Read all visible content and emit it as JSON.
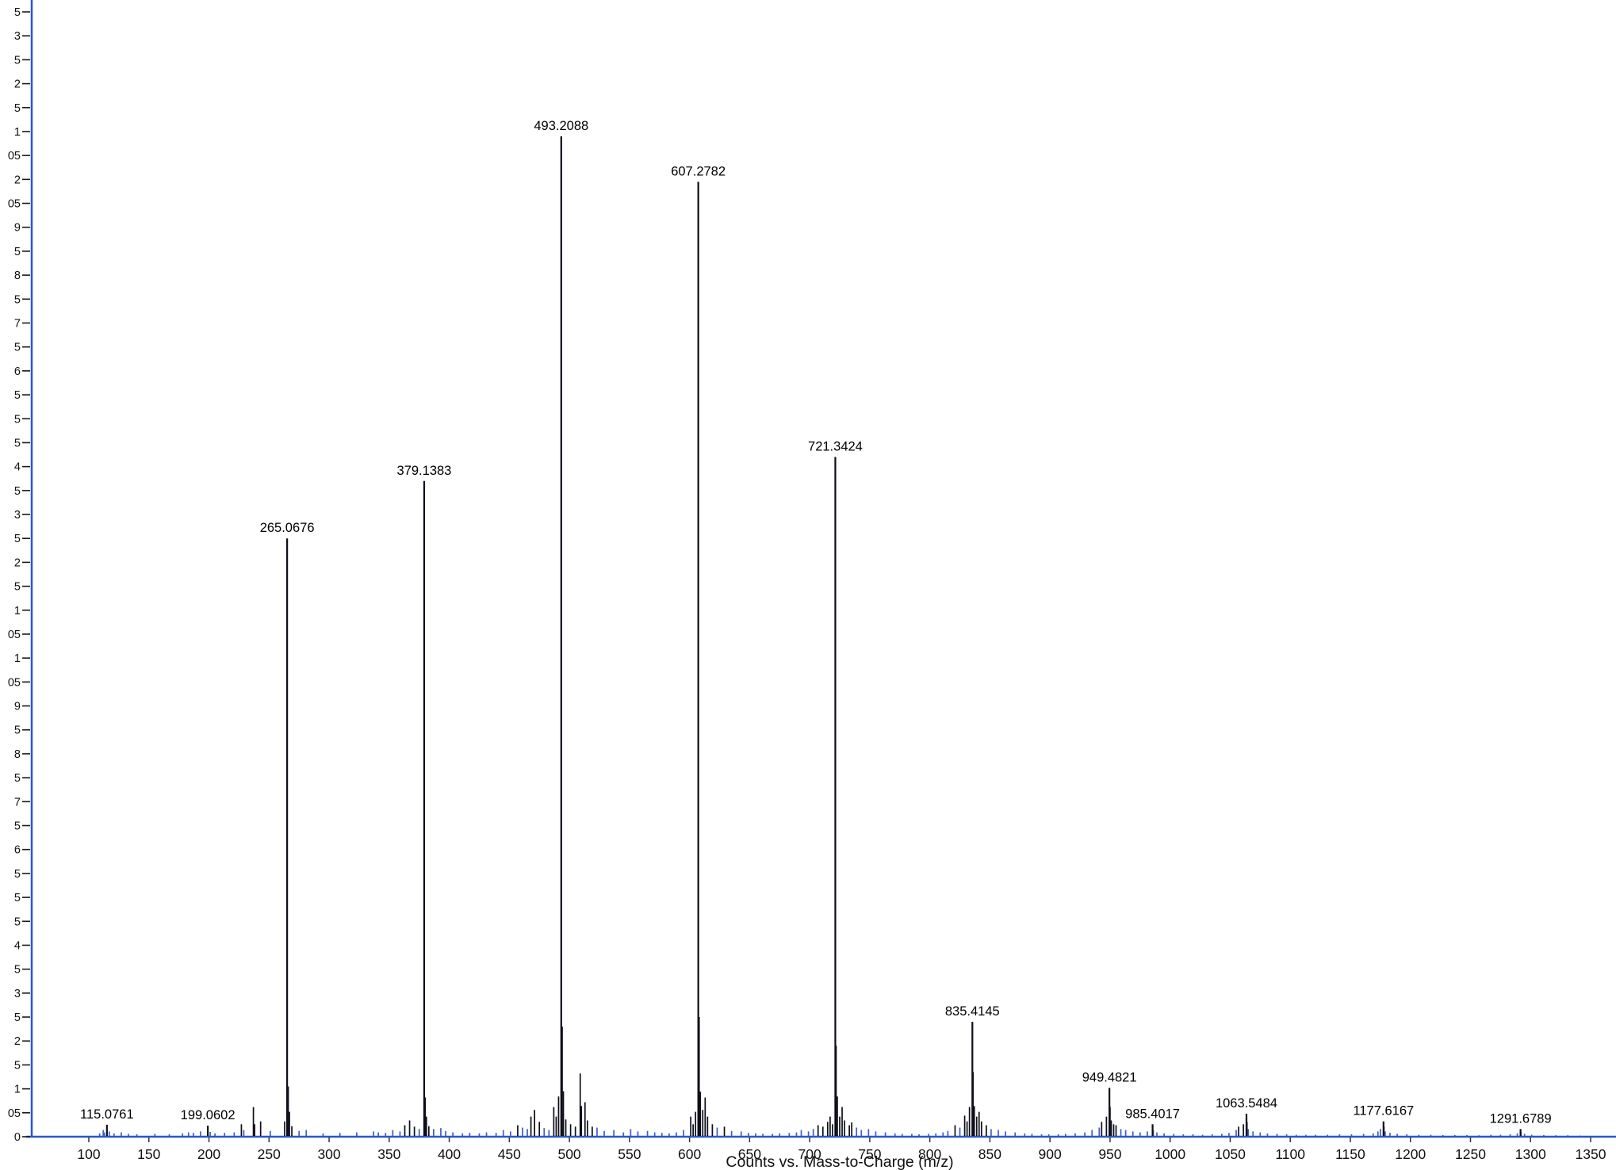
{
  "window": {
    "background": "#ffffff"
  },
  "chart_data": {
    "type": "bar",
    "subtype": "mass-spectrum-stick-plot",
    "title": "",
    "xlabel": "Counts vs. Mass-to-Charge (m/z)",
    "ylabel": "",
    "legend": "none",
    "grid": false,
    "x_axis": {
      "tick_labels": [
        "100",
        "150",
        "200",
        "250",
        "300",
        "350",
        "400",
        "450",
        "500",
        "550",
        "600",
        "650",
        "700",
        "750",
        "800",
        "850",
        "900",
        "950",
        "1000",
        "1050",
        "1100",
        "1150",
        "1200",
        "1250",
        "1300",
        "1350"
      ],
      "tick_start": 100,
      "tick_end": 1350,
      "tick_step": 50
    },
    "y_axis": {
      "min": 0,
      "max": 235000,
      "tick_step": 5000,
      "labels_clipped_at_left_edge": true,
      "visible_tick_fragments": [
        "5",
        "3",
        "5",
        "2",
        "5",
        "1",
        "05",
        "2",
        "05",
        "9",
        "5",
        "8",
        "5",
        "7",
        "5",
        "6",
        "5",
        "5",
        "5",
        "4",
        "5",
        "3",
        "5",
        "2",
        "5",
        "1",
        "05",
        "1",
        "05",
        "9",
        "5",
        "8",
        "5",
        "7",
        "5",
        "6",
        "5",
        "5",
        "5",
        "4",
        "5",
        "3",
        "5",
        "2",
        "5",
        "1",
        "05",
        "0"
      ]
    },
    "labeled_peaks": [
      {
        "mz": 115.0761,
        "intensity": 2500,
        "label": "115.0761"
      },
      {
        "mz": 199.0602,
        "intensity": 2300,
        "label": "199.0602"
      },
      {
        "mz": 265.0676,
        "intensity": 125000,
        "label": "265.0676"
      },
      {
        "mz": 379.1383,
        "intensity": 137000,
        "label": "379.1383"
      },
      {
        "mz": 493.2088,
        "intensity": 209000,
        "label": "493.2088"
      },
      {
        "mz": 607.2782,
        "intensity": 199500,
        "label": "607.2782"
      },
      {
        "mz": 721.3424,
        "intensity": 142000,
        "label": "721.3424"
      },
      {
        "mz": 835.4145,
        "intensity": 24000,
        "label": "835.4145"
      },
      {
        "mz": 949.4821,
        "intensity": 10200,
        "label": "949.4821"
      },
      {
        "mz": 985.4017,
        "intensity": 2600,
        "label": "985.4017"
      },
      {
        "mz": 1063.5484,
        "intensity": 4800,
        "label": "1063.5484"
      },
      {
        "mz": 1177.6167,
        "intensity": 3200,
        "label": "1177.6167"
      },
      {
        "mz": 1291.6789,
        "intensity": 1600,
        "label": "1291.6789"
      }
    ],
    "minor_peaks": [
      [
        109,
        700
      ],
      [
        112,
        1400
      ],
      [
        113,
        900
      ],
      [
        117,
        1100
      ],
      [
        121,
        700
      ],
      [
        127,
        900
      ],
      [
        133,
        600
      ],
      [
        140,
        500
      ],
      [
        155,
        600
      ],
      [
        167,
        500
      ],
      [
        178,
        700
      ],
      [
        183,
        900
      ],
      [
        187,
        800
      ],
      [
        193,
        1100
      ],
      [
        201,
        1000
      ],
      [
        205,
        700
      ],
      [
        213,
        800
      ],
      [
        221,
        900
      ],
      [
        227,
        2600
      ],
      [
        229,
        1400
      ],
      [
        237,
        6200
      ],
      [
        238,
        2600
      ],
      [
        243,
        3200
      ],
      [
        251,
        1200
      ],
      [
        263,
        3200
      ],
      [
        266,
        10500
      ],
      [
        267,
        5200
      ],
      [
        269,
        2200
      ],
      [
        275,
        1200
      ],
      [
        281,
        1400
      ],
      [
        295,
        700
      ],
      [
        309,
        800
      ],
      [
        323,
        900
      ],
      [
        337,
        1100
      ],
      [
        341,
        900
      ],
      [
        347,
        800
      ],
      [
        353,
        1400
      ],
      [
        359,
        1100
      ],
      [
        363,
        2400
      ],
      [
        367,
        3400
      ],
      [
        371,
        2100
      ],
      [
        375,
        1600
      ],
      [
        380,
        8200
      ],
      [
        381,
        4200
      ],
      [
        383,
        2200
      ],
      [
        387,
        1600
      ],
      [
        393,
        1800
      ],
      [
        397,
        1200
      ],
      [
        403,
        900
      ],
      [
        411,
        700
      ],
      [
        417,
        800
      ],
      [
        425,
        700
      ],
      [
        431,
        900
      ],
      [
        439,
        800
      ],
      [
        445,
        1400
      ],
      [
        451,
        1100
      ],
      [
        457,
        2400
      ],
      [
        461,
        1900
      ],
      [
        465,
        1600
      ],
      [
        468,
        4200
      ],
      [
        471,
        5600
      ],
      [
        475,
        3100
      ],
      [
        479,
        1800
      ],
      [
        483,
        1400
      ],
      [
        487,
        6200
      ],
      [
        489,
        4200
      ],
      [
        491,
        8400
      ],
      [
        494,
        23000
      ],
      [
        495,
        9500
      ],
      [
        497,
        3600
      ],
      [
        501,
        2600
      ],
      [
        505,
        2100
      ],
      [
        509,
        13200
      ],
      [
        510,
        6400
      ],
      [
        513,
        7200
      ],
      [
        515,
        3400
      ],
      [
        519,
        2100
      ],
      [
        523,
        1900
      ],
      [
        529,
        1200
      ],
      [
        537,
        1400
      ],
      [
        545,
        900
      ],
      [
        551,
        1600
      ],
      [
        557,
        1100
      ],
      [
        565,
        1200
      ],
      [
        571,
        900
      ],
      [
        577,
        800
      ],
      [
        583,
        700
      ],
      [
        589,
        900
      ],
      [
        595,
        1400
      ],
      [
        601,
        4200
      ],
      [
        603,
        2600
      ],
      [
        605,
        5200
      ],
      [
        608,
        25000
      ],
      [
        609,
        9400
      ],
      [
        611,
        5600
      ],
      [
        613,
        8200
      ],
      [
        615,
        4200
      ],
      [
        619,
        2600
      ],
      [
        623,
        1900
      ],
      [
        629,
        2100
      ],
      [
        635,
        1200
      ],
      [
        643,
        1100
      ],
      [
        649,
        800
      ],
      [
        655,
        700
      ],
      [
        661,
        600
      ],
      [
        669,
        600
      ],
      [
        675,
        700
      ],
      [
        683,
        800
      ],
      [
        689,
        900
      ],
      [
        693,
        1400
      ],
      [
        699,
        1100
      ],
      [
        703,
        1600
      ],
      [
        707,
        2400
      ],
      [
        711,
        2100
      ],
      [
        715,
        3100
      ],
      [
        717,
        4200
      ],
      [
        719,
        2600
      ],
      [
        722,
        19000
      ],
      [
        723,
        8400
      ],
      [
        725,
        4200
      ],
      [
        727,
        6200
      ],
      [
        729,
        3400
      ],
      [
        733,
        2400
      ],
      [
        735,
        3000
      ],
      [
        739,
        1900
      ],
      [
        743,
        1400
      ],
      [
        749,
        1600
      ],
      [
        755,
        1100
      ],
      [
        763,
        900
      ],
      [
        771,
        700
      ],
      [
        777,
        600
      ],
      [
        785,
        600
      ],
      [
        791,
        500
      ],
      [
        799,
        600
      ],
      [
        805,
        700
      ],
      [
        811,
        900
      ],
      [
        815,
        1200
      ],
      [
        821,
        2400
      ],
      [
        825,
        1900
      ],
      [
        829,
        4400
      ],
      [
        831,
        3200
      ],
      [
        833,
        6200
      ],
      [
        836,
        13500
      ],
      [
        837,
        6400
      ],
      [
        839,
        4200
      ],
      [
        841,
        5200
      ],
      [
        843,
        3200
      ],
      [
        847,
        2400
      ],
      [
        851,
        1600
      ],
      [
        857,
        1400
      ],
      [
        863,
        1100
      ],
      [
        871,
        900
      ],
      [
        879,
        700
      ],
      [
        885,
        600
      ],
      [
        893,
        500
      ],
      [
        899,
        500
      ],
      [
        907,
        500
      ],
      [
        913,
        600
      ],
      [
        921,
        700
      ],
      [
        929,
        900
      ],
      [
        935,
        1400
      ],
      [
        941,
        1900
      ],
      [
        943,
        3100
      ],
      [
        947,
        4200
      ],
      [
        950,
        6200
      ],
      [
        951,
        3400
      ],
      [
        953,
        2600
      ],
      [
        955,
        2400
      ],
      [
        959,
        1600
      ],
      [
        963,
        1400
      ],
      [
        969,
        1100
      ],
      [
        975,
        900
      ],
      [
        981,
        1100
      ],
      [
        986,
        1400
      ],
      [
        989,
        900
      ],
      [
        995,
        700
      ],
      [
        1003,
        600
      ],
      [
        1011,
        500
      ],
      [
        1019,
        500
      ],
      [
        1027,
        400
      ],
      [
        1035,
        500
      ],
      [
        1043,
        600
      ],
      [
        1049,
        800
      ],
      [
        1055,
        1400
      ],
      [
        1057,
        2100
      ],
      [
        1061,
        2600
      ],
      [
        1064,
        3100
      ],
      [
        1065,
        1600
      ],
      [
        1069,
        1100
      ],
      [
        1075,
        900
      ],
      [
        1081,
        700
      ],
      [
        1089,
        600
      ],
      [
        1097,
        500
      ],
      [
        1105,
        400
      ],
      [
        1113,
        400
      ],
      [
        1121,
        400
      ],
      [
        1131,
        400
      ],
      [
        1141,
        500
      ],
      [
        1151,
        500
      ],
      [
        1161,
        600
      ],
      [
        1169,
        700
      ],
      [
        1173,
        1100
      ],
      [
        1175,
        1600
      ],
      [
        1178,
        2100
      ],
      [
        1179,
        1100
      ],
      [
        1183,
        800
      ],
      [
        1189,
        600
      ],
      [
        1197,
        500
      ],
      [
        1207,
        400
      ],
      [
        1217,
        400
      ],
      [
        1227,
        350
      ],
      [
        1237,
        350
      ],
      [
        1247,
        350
      ],
      [
        1257,
        300
      ],
      [
        1267,
        400
      ],
      [
        1275,
        400
      ],
      [
        1283,
        500
      ],
      [
        1289,
        700
      ],
      [
        1292,
        900
      ],
      [
        1295,
        600
      ],
      [
        1301,
        400
      ],
      [
        1311,
        350
      ],
      [
        1321,
        300
      ],
      [
        1331,
        300
      ],
      [
        1341,
        250
      ]
    ],
    "colors": {
      "axis": "#2b55cc",
      "peak": "#0e0e1a",
      "noise": "#3c5fbf",
      "label_text": "#000000",
      "tick_text": "#111111"
    }
  }
}
